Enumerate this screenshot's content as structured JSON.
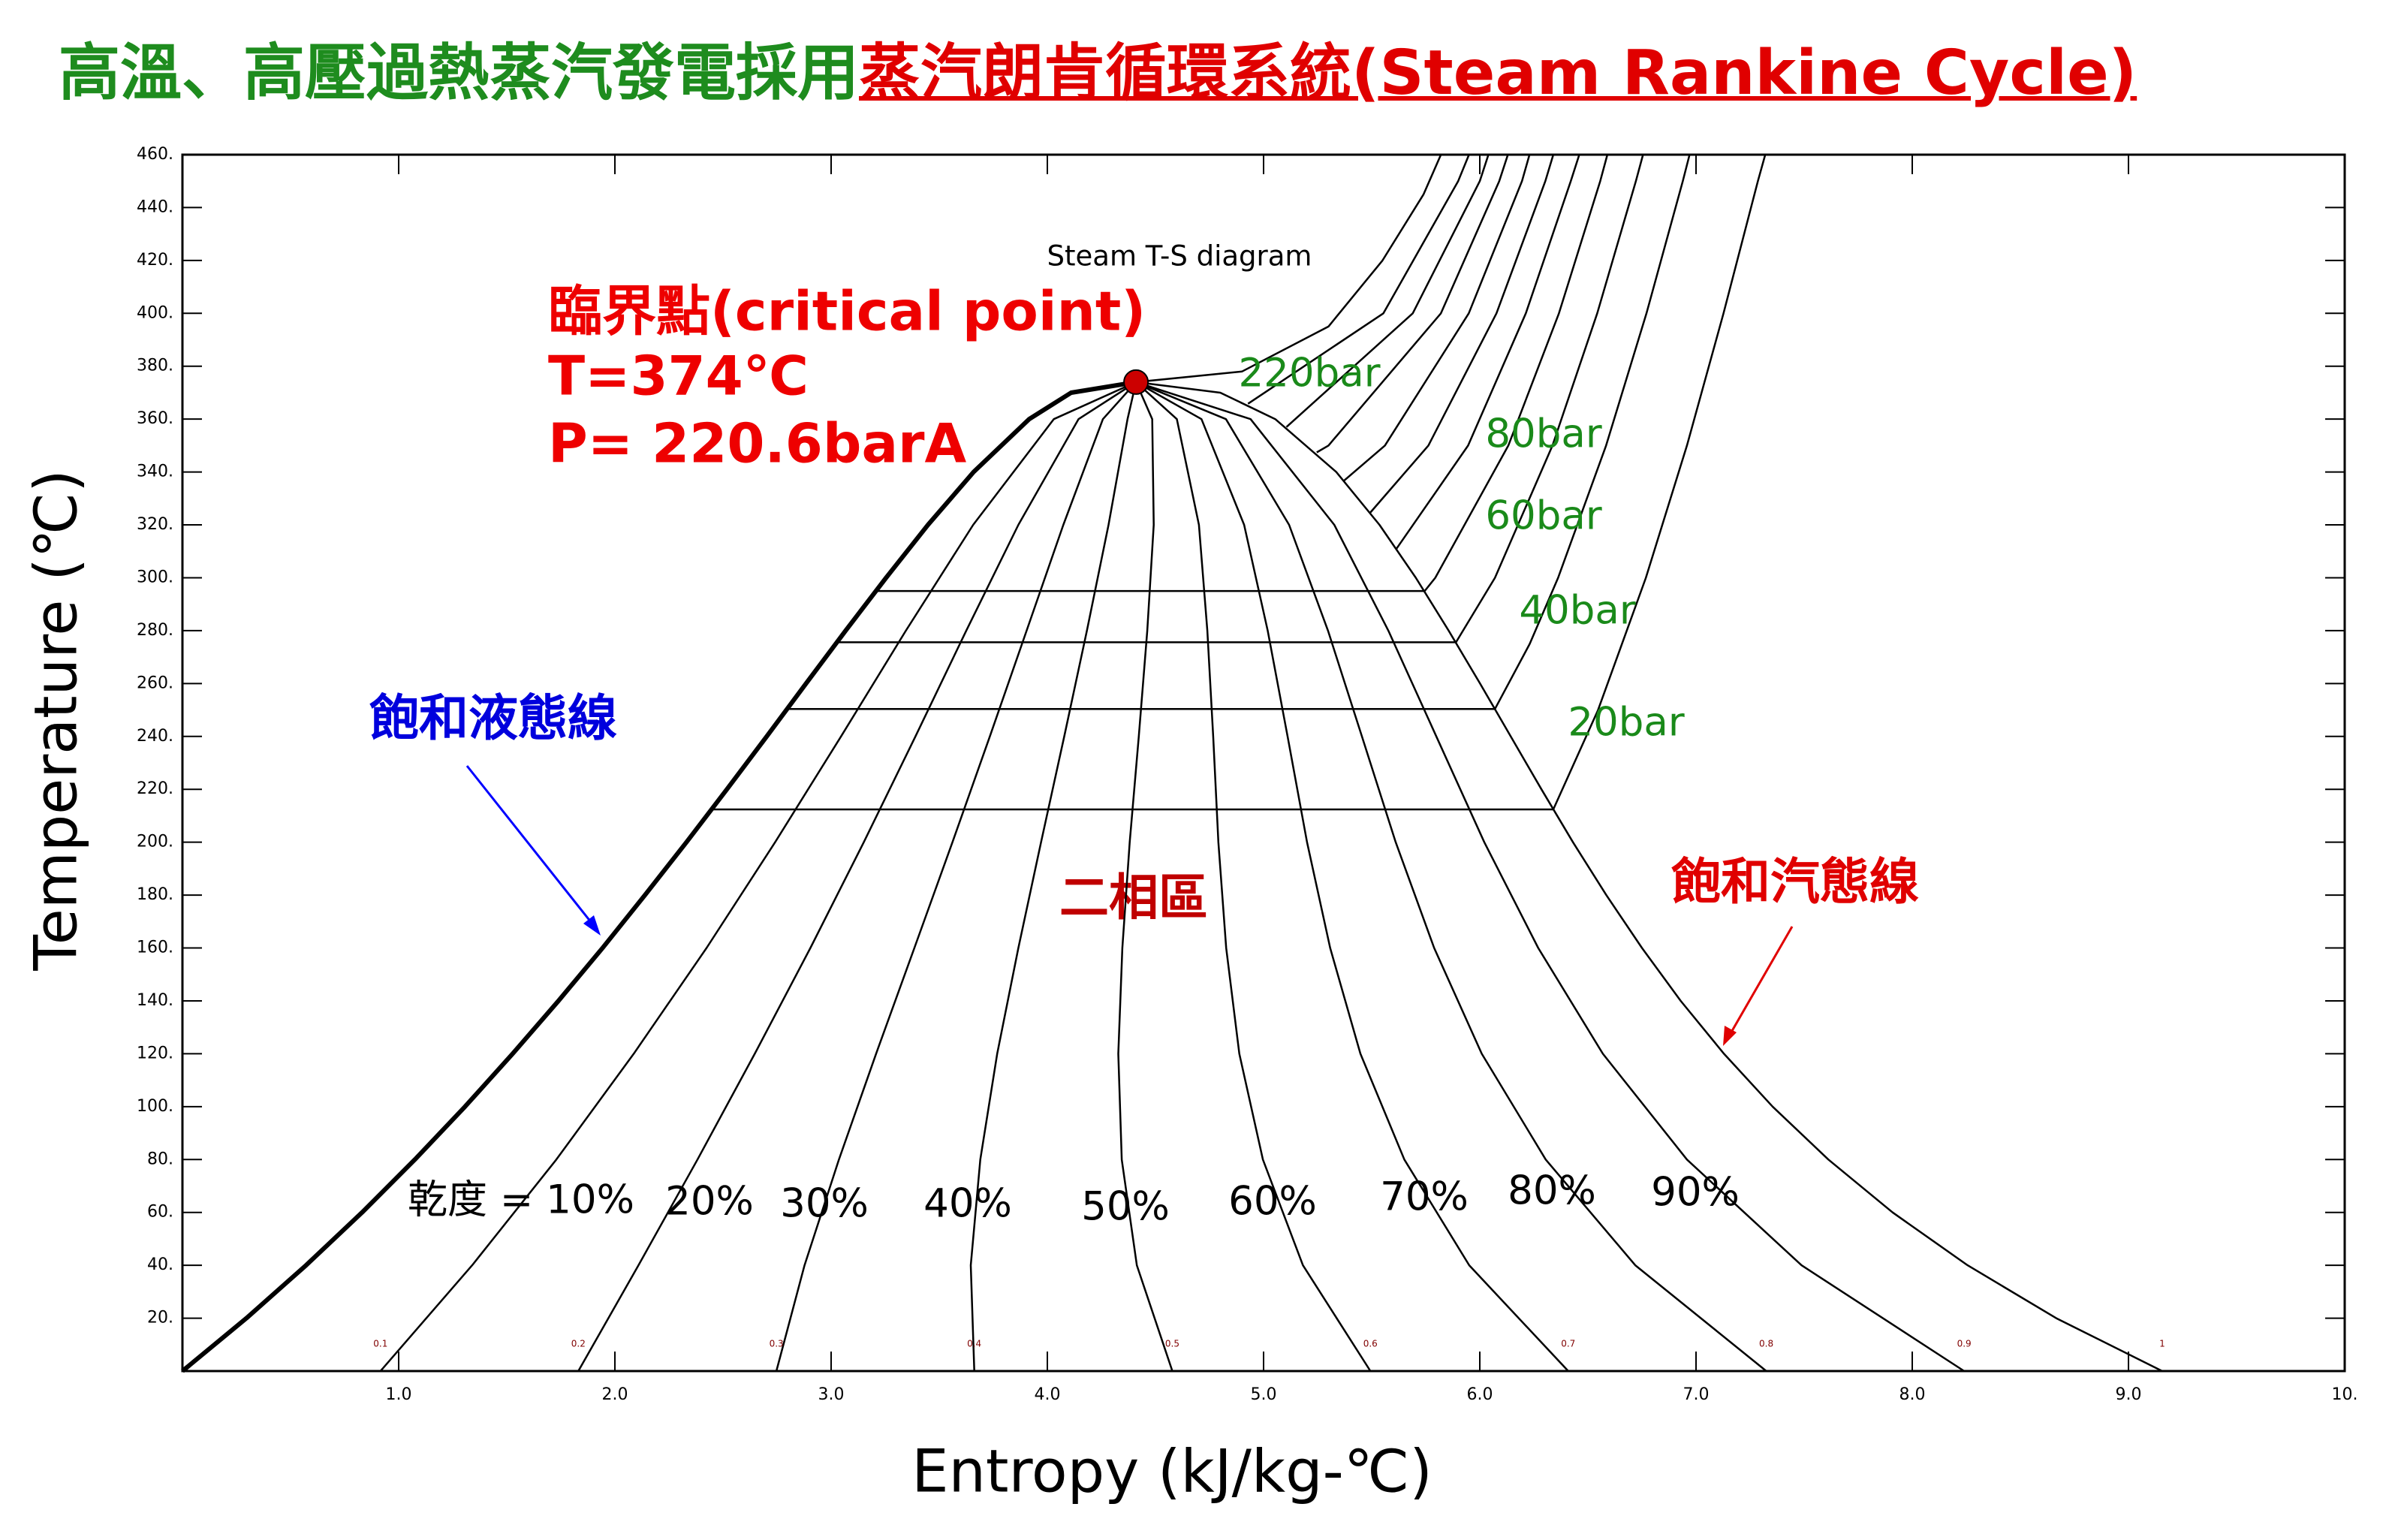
{
  "page_title": [
    "高溫、高壓過熱蒸汽發電採用",
    "蒸汽朗肯循環系統(Steam Rankine Cycle)"
  ],
  "chart_data": {
    "type": "line",
    "title": "Steam T-S diagram",
    "x_label": "Entropy (kJ/kg-℃)",
    "y_label": "Temperature (℃)",
    "color": "#000000",
    "xlim": [
      0,
      10
    ],
    "ylim": [
      0,
      460
    ],
    "xticks": [
      {
        "value": 1,
        "label": "1.0"
      },
      {
        "value": 2,
        "label": "2.0"
      },
      {
        "value": 3,
        "label": "3.0"
      },
      {
        "value": 4,
        "label": "4.0"
      },
      {
        "value": 5,
        "label": "5.0"
      },
      {
        "value": 6,
        "label": "6.0"
      },
      {
        "value": 7,
        "label": "7.0"
      },
      {
        "value": 8,
        "label": "8.0"
      },
      {
        "value": 9,
        "label": "9.0"
      },
      {
        "value": 10,
        "label": "10."
      }
    ],
    "yticks": [
      {
        "value": 20,
        "label": "20."
      },
      {
        "value": 40,
        "label": "40."
      },
      {
        "value": 60,
        "label": "60."
      },
      {
        "value": 80,
        "label": "80."
      },
      {
        "value": 100,
        "label": "100."
      },
      {
        "value": 120,
        "label": "120."
      },
      {
        "value": 140,
        "label": "140."
      },
      {
        "value": 160,
        "label": "160."
      },
      {
        "value": 180,
        "label": "180."
      },
      {
        "value": 200,
        "label": "200."
      },
      {
        "value": 220,
        "label": "220."
      },
      {
        "value": 240,
        "label": "240."
      },
      {
        "value": 260,
        "label": "260."
      },
      {
        "value": 280,
        "label": "280."
      },
      {
        "value": 300,
        "label": "300."
      },
      {
        "value": 320,
        "label": "320."
      },
      {
        "value": 340,
        "label": "340."
      },
      {
        "value": 360,
        "label": "360."
      },
      {
        "value": 380,
        "label": "380."
      },
      {
        "value": 400,
        "label": "400."
      },
      {
        "value": 420,
        "label": "420."
      },
      {
        "value": 440,
        "label": "440."
      },
      {
        "value": 460,
        "label": "460."
      }
    ],
    "series": [
      {
        "x": [
          0,
          0.296,
          0.572,
          0.831,
          1.075,
          1.307,
          1.527,
          1.739,
          1.943,
          2.139,
          2.331,
          2.518,
          2.702,
          2.884,
          3.067,
          3.254,
          3.448,
          3.659,
          3.916,
          4.11,
          4.41
        ],
        "values": [
          0,
          20,
          40,
          60,
          80,
          100,
          120,
          140,
          160,
          180,
          200,
          220,
          240,
          260,
          280,
          300,
          320,
          340,
          360,
          370,
          374
        ]
      },
      {
        "x": [
          9.156,
          8.666,
          8.256,
          7.909,
          7.612,
          7.354,
          7.129,
          6.929,
          6.75,
          6.585,
          6.431,
          6.285,
          6.143,
          6.001,
          5.856,
          5.704,
          5.536,
          5.336,
          5.054,
          4.8,
          4.41
        ],
        "values": [
          0,
          20,
          40,
          60,
          80,
          100,
          120,
          140,
          160,
          180,
          200,
          220,
          240,
          260,
          280,
          300,
          320,
          340,
          360,
          370,
          374
        ]
      },
      {
        "x": [
          0.916,
          1.34,
          1.729,
          2.087,
          2.424,
          2.741,
          3.046,
          3.346,
          3.657,
          4.03,
          4.41
        ],
        "values": [
          0,
          40,
          80,
          120,
          160,
          200,
          240,
          280,
          320,
          360,
          374
        ]
      },
      {
        "x": [
          1.831,
          2.109,
          2.382,
          2.647,
          2.904,
          3.151,
          3.39,
          3.625,
          3.866,
          4.144,
          4.41
        ],
        "values": [
          0,
          40,
          80,
          120,
          160,
          200,
          240,
          280,
          320,
          360,
          374
        ]
      },
      {
        "x": [
          2.747,
          2.877,
          3.036,
          3.208,
          3.385,
          3.561,
          3.734,
          3.904,
          4.074,
          4.257,
          4.41
        ],
        "values": [
          0,
          40,
          80,
          120,
          160,
          200,
          240,
          280,
          320,
          360,
          374
        ]
      },
      {
        "x": [
          3.662,
          3.646,
          3.69,
          3.768,
          3.866,
          3.971,
          4.078,
          4.183,
          4.283,
          4.371,
          4.41
        ],
        "values": [
          0,
          40,
          80,
          120,
          160,
          200,
          240,
          280,
          320,
          360,
          374
        ]
      },
      {
        "x": [
          4.578,
          4.414,
          4.344,
          4.328,
          4.347,
          4.381,
          4.423,
          4.462,
          4.492,
          4.485,
          4.41
        ],
        "values": [
          0,
          40,
          80,
          120,
          160,
          200,
          240,
          280,
          320,
          360,
          374
        ]
      },
      {
        "x": [
          5.494,
          5.182,
          4.997,
          4.888,
          4.827,
          4.791,
          4.767,
          4.74,
          4.701,
          4.599,
          4.41
        ],
        "values": [
          0,
          40,
          80,
          120,
          160,
          200,
          240,
          280,
          320,
          360,
          374
        ]
      },
      {
        "x": [
          6.409,
          5.951,
          5.651,
          5.448,
          5.308,
          5.201,
          5.111,
          5.019,
          4.91,
          4.713,
          4.41
        ],
        "values": [
          0,
          40,
          80,
          120,
          160,
          200,
          240,
          280,
          320,
          360,
          374
        ]
      },
      {
        "x": [
          7.325,
          6.719,
          6.305,
          6.009,
          5.789,
          5.611,
          5.455,
          5.298,
          5.118,
          4.826,
          4.41
        ],
        "values": [
          0,
          40,
          80,
          120,
          160,
          200,
          240,
          280,
          320,
          360,
          374
        ]
      },
      {
        "x": [
          8.24,
          7.488,
          6.958,
          6.569,
          6.27,
          6.021,
          5.799,
          5.577,
          5.327,
          4.94,
          4.41
        ],
        "values": [
          0,
          40,
          80,
          120,
          160,
          200,
          240,
          280,
          320,
          360,
          374
        ]
      },
      {
        "x": [
          2.447,
          6.34,
          6.547,
          6.768,
          6.958,
          7.127,
          7.286,
          7.32
        ],
        "values": [
          212.4,
          212.4,
          250,
          300,
          350,
          400,
          450,
          460
        ]
      },
      {
        "x": [
          2.797,
          6.07,
          6.231,
          6.362,
          6.584,
          6.771,
          6.939,
          6.97
        ],
        "values": [
          250.4,
          250.4,
          275,
          300,
          350,
          400,
          450,
          460
        ]
      },
      {
        "x": [
          3.027,
          5.89,
          6.07,
          6.336,
          6.543,
          6.722,
          6.755
        ],
        "values": [
          275.6,
          275.6,
          300,
          350,
          400,
          450,
          460
        ]
      },
      {
        "x": [
          3.207,
          5.745,
          5.794,
          6.132,
          6.366,
          6.557,
          6.59
        ],
        "values": [
          295,
          295,
          300,
          350,
          400,
          450,
          460
        ]
      },
      {
        "x": [
          5.615,
          5.946,
          6.213,
          6.421,
          6.46
        ],
        "values": [
          311,
          350,
          400,
          450,
          460
        ]
      },
      {
        "x": [
          5.494,
          5.762,
          6.077,
          6.303,
          6.34
        ],
        "values": [
          324.7,
          350,
          400,
          450,
          460
        ]
      },
      {
        "x": [
          5.372,
          5.561,
          5.949,
          6.195,
          6.23
        ],
        "values": [
          336.7,
          350,
          400,
          450,
          460
        ]
      },
      {
        "x": [
          5.246,
          5.3,
          5.82,
          6.09,
          6.13
        ],
        "values": [
          347.4,
          350,
          400,
          450,
          460
        ]
      },
      {
        "x": [
          5.106,
          5.69,
          6.0,
          6.04
        ],
        "values": [
          357,
          400,
          450,
          460
        ]
      },
      {
        "x": [
          4.928,
          5.554,
          5.9,
          5.95
        ],
        "values": [
          365.8,
          400,
          450,
          460
        ]
      },
      {
        "x": [
          4.41,
          4.9,
          5.3,
          5.55,
          5.74,
          5.82
        ],
        "values": [
          374,
          378,
          395,
          420,
          445,
          460
        ]
      }
    ],
    "critical_point": {
      "x": 4.41,
      "y": 374,
      "color": "#cc0000"
    },
    "critical_point_label": [
      "臨界點(critical point)",
      "T=374℃",
      "P= 220.6barA"
    ],
    "isobar_labels": [
      "220bar",
      "80bar",
      "60bar",
      "40bar",
      "20bar"
    ],
    "quality_labels": [
      "乾度 = 10%",
      "20%",
      "30%",
      "40%",
      "50%",
      "60%",
      "70%",
      "80%",
      "90%"
    ],
    "quality_scale_labels": [
      "0.1",
      "0.2",
      "0.3",
      "0.4",
      "0.5",
      "0.6",
      "0.7",
      "0.8",
      "0.9",
      "1"
    ],
    "saturated_liquid_label": "飽和液態線",
    "saturated_vapor_label": "飽和汽態線",
    "two_phase_label": "二相區"
  }
}
